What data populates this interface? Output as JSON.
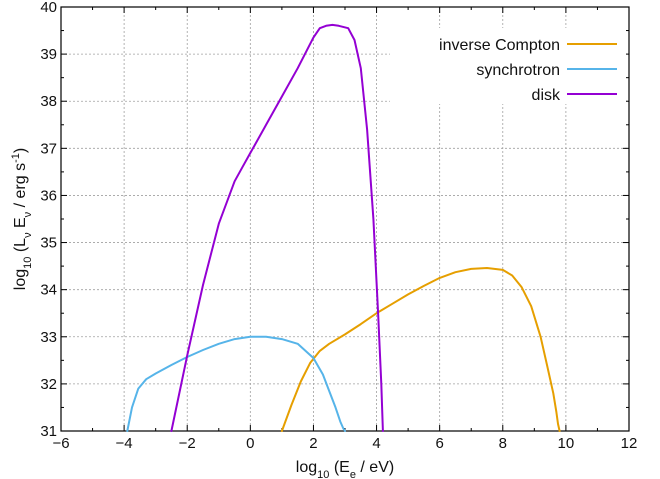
{
  "chart_data": {
    "type": "line",
    "xlabel": {
      "base": "log",
      "sub": "10",
      "rest_pre": " (E",
      "rest_sub": "e",
      "rest_post": " / eV)"
    },
    "ylabel": {
      "base": "log",
      "sub": "10",
      "p1": " (L",
      "p1_sub": "ν",
      "p2": " E",
      "p2_sub": "ν",
      "p3": " / erg s",
      "p3_sup": "-1",
      "p4": ")"
    },
    "xlim": [
      -6,
      12
    ],
    "ylim": [
      31,
      40
    ],
    "xticks": [
      -6,
      -4,
      -2,
      0,
      2,
      4,
      6,
      8,
      10,
      12
    ],
    "yticks": [
      31,
      32,
      33,
      34,
      35,
      36,
      37,
      38,
      39,
      40
    ],
    "grid": true,
    "legend_position": "top-right",
    "series": [
      {
        "name": "inverse Compton",
        "color": "#e69f00",
        "x": [
          1.0,
          1.3,
          1.6,
          1.9,
          2.2,
          2.5,
          3.0,
          3.5,
          4.0,
          4.5,
          5.0,
          5.5,
          6.0,
          6.5,
          7.0,
          7.5,
          8.0,
          8.3,
          8.6,
          8.9,
          9.2,
          9.4,
          9.6,
          9.7,
          9.75,
          9.8
        ],
        "y": [
          31.0,
          31.55,
          32.05,
          32.45,
          32.7,
          32.85,
          33.05,
          33.27,
          33.5,
          33.7,
          33.9,
          34.08,
          34.25,
          34.37,
          34.44,
          34.46,
          34.42,
          34.3,
          34.05,
          33.65,
          33.0,
          32.4,
          31.8,
          31.4,
          31.15,
          31.0
        ]
      },
      {
        "name": "synchrotron",
        "color": "#56b4e9",
        "x": [
          -3.9,
          -3.75,
          -3.55,
          -3.3,
          -3.0,
          -2.5,
          -2.0,
          -1.5,
          -1.0,
          -0.5,
          0.0,
          0.5,
          1.0,
          1.5,
          2.0,
          2.3,
          2.5,
          2.7,
          2.85,
          2.95,
          3.0
        ],
        "y": [
          31.0,
          31.5,
          31.9,
          32.1,
          32.22,
          32.4,
          32.57,
          32.72,
          32.85,
          32.95,
          33.0,
          33.0,
          32.95,
          32.85,
          32.55,
          32.2,
          31.85,
          31.5,
          31.2,
          31.05,
          31.0
        ]
      },
      {
        "name": "disk",
        "color": "#9400d3",
        "x": [
          -2.5,
          -2.0,
          -1.5,
          -1.0,
          -0.5,
          -0.25,
          0.0,
          0.5,
          1.0,
          1.5,
          2.0,
          2.2,
          2.4,
          2.6,
          2.8,
          3.1,
          3.3,
          3.5,
          3.7,
          3.9,
          4.05,
          4.15,
          4.2
        ],
        "y": [
          31.0,
          32.6,
          34.1,
          35.4,
          36.3,
          36.6,
          36.9,
          37.5,
          38.1,
          38.7,
          39.35,
          39.55,
          39.6,
          39.62,
          39.6,
          39.55,
          39.3,
          38.7,
          37.4,
          35.5,
          33.5,
          32.0,
          31.0
        ]
      }
    ]
  }
}
